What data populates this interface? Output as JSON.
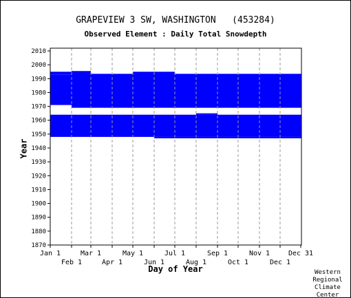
{
  "chart_data": {
    "type": "heatmap",
    "title": "GRAPEVIEW 3 SW, WASHINGTON   (453284)",
    "subtitle": "Observed Element : Daily Total Snowdepth",
    "xlabel": "Day of Year",
    "ylabel": "Year",
    "xlim": [
      1,
      366
    ],
    "ylim": [
      1870,
      2012
    ],
    "y_ticks": [
      1870,
      1880,
      1890,
      1900,
      1910,
      1920,
      1930,
      1940,
      1950,
      1960,
      1970,
      1980,
      1990,
      2000,
      2010
    ],
    "x_ticks_top_row": [
      {
        "label": "Jan 1",
        "day": 1
      },
      {
        "label": "Mar 1",
        "day": 60
      },
      {
        "label": "May 1",
        "day": 121
      },
      {
        "label": "Jul 1",
        "day": 182
      },
      {
        "label": "Sep 1",
        "day": 244
      },
      {
        "label": "Nov 1",
        "day": 305
      },
      {
        "label": "Dec 31",
        "day": 365
      }
    ],
    "x_ticks_bottom_row": [
      {
        "label": "Feb 1",
        "day": 32
      },
      {
        "label": "Apr 1",
        "day": 91
      },
      {
        "label": "Jun 1",
        "day": 152
      },
      {
        "label": "Aug 1",
        "day": 213
      },
      {
        "label": "Oct 1",
        "day": 274
      },
      {
        "label": "Dec 1",
        "day": 335
      }
    ],
    "grid": true,
    "color": "#0000ff",
    "observed_blocks": [
      {
        "day_start": 1,
        "day_end": 366,
        "year_start": 1971,
        "year_end": 1993
      },
      {
        "day_start": 1,
        "day_end": 32,
        "year_start": 1993,
        "year_end": 1995
      },
      {
        "day_start": 32,
        "day_end": 60,
        "year_start": 1969,
        "year_end": 1995.5
      },
      {
        "day_start": 60,
        "day_end": 121,
        "year_start": 1969,
        "year_end": 1993.5
      },
      {
        "day_start": 121,
        "day_end": 182,
        "year_start": 1969,
        "year_end": 1995
      },
      {
        "day_start": 182,
        "day_end": 366,
        "year_start": 1969,
        "year_end": 1993.5
      },
      {
        "day_start": 305,
        "day_end": 366,
        "year_start": 1970.5,
        "year_end": 1972
      },
      {
        "day_start": 1,
        "day_end": 366,
        "year_start": 1948,
        "year_end": 1964
      },
      {
        "day_start": 213,
        "day_end": 244,
        "year_start": 1964,
        "year_end": 1965
      },
      {
        "day_start": 152,
        "day_end": 366,
        "year_start": 1947,
        "year_end": 1948
      }
    ]
  },
  "credit": [
    "Western",
    "Regional",
    "Climate",
    "Center"
  ]
}
